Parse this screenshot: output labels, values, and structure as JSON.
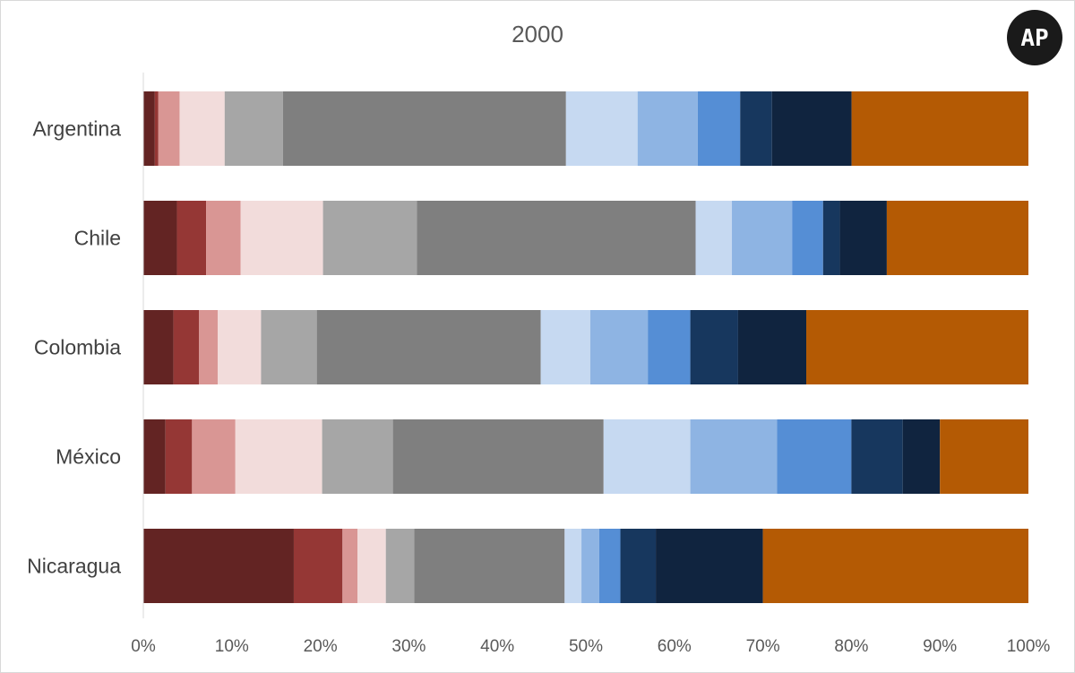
{
  "logo": {
    "text": "AP"
  },
  "chart_data": {
    "type": "bar",
    "orientation": "horizontal",
    "stacked": true,
    "percent": true,
    "title": "2000",
    "categories": [
      "Argentina",
      "Chile",
      "Colombia",
      "México",
      "Nicaragua"
    ],
    "xlim": [
      0,
      100
    ],
    "x_ticks": [
      "0%",
      "10%",
      "20%",
      "30%",
      "40%",
      "50%",
      "60%",
      "70%",
      "80%",
      "90%",
      "100%"
    ],
    "grid": false,
    "legend": "none",
    "series": [
      {
        "color": "#632423",
        "values": [
          1.3,
          3.8,
          3.4,
          2.5,
          17.0
        ]
      },
      {
        "color": "#953735",
        "values": [
          0.4,
          3.3,
          2.9,
          3.0,
          5.5
        ]
      },
      {
        "color": "#D99694",
        "values": [
          2.4,
          3.9,
          2.1,
          4.9,
          1.7
        ]
      },
      {
        "color": "#F2DCDB",
        "values": [
          5.1,
          9.3,
          4.9,
          9.8,
          3.2
        ]
      },
      {
        "color": "#A6A6A6",
        "values": [
          6.6,
          10.6,
          6.3,
          8.0,
          3.2
        ]
      },
      {
        "color": "#7F7F7F",
        "values": [
          32.0,
          31.5,
          25.3,
          23.8,
          17.0
        ]
      },
      {
        "color": "#C6D9F1",
        "values": [
          8.1,
          4.1,
          5.6,
          9.8,
          1.9
        ]
      },
      {
        "color": "#8EB4E3",
        "values": [
          6.8,
          6.8,
          6.5,
          9.8,
          2.0
        ]
      },
      {
        "color": "#558ED5",
        "values": [
          4.8,
          3.5,
          4.8,
          8.4,
          2.4
        ]
      },
      {
        "color": "#17375E",
        "values": [
          3.6,
          1.9,
          5.4,
          5.8,
          4.0
        ]
      },
      {
        "color": "#10243F",
        "values": [
          9.0,
          5.3,
          7.7,
          4.2,
          12.1
        ]
      },
      {
        "color": "#B45A04",
        "values": [
          20.0,
          16.0,
          25.1,
          10.0,
          30.0
        ]
      }
    ]
  }
}
